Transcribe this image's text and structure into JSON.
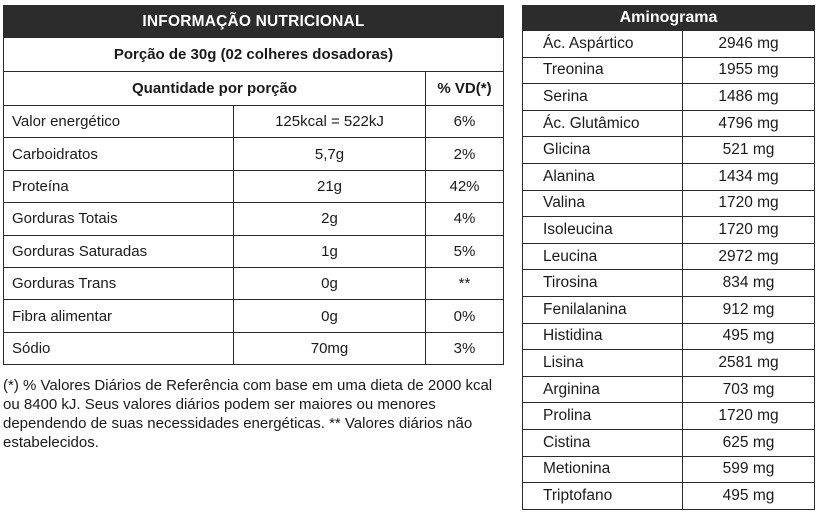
{
  "nutrition": {
    "title": "INFORMAÇÃO NUTRICIONAL",
    "portion": "Porção de 30g (02 colheres dosadoras)",
    "header_quantity": "Quantidade por porção",
    "header_vd": "% VD(*)",
    "rows": [
      {
        "name": "Valor energético",
        "value": "125kcal = 522kJ",
        "vd": "6%"
      },
      {
        "name": "Carboidratos",
        "value": "5,7g",
        "vd": "2%"
      },
      {
        "name": "Proteína",
        "value": "21g",
        "vd": "42%"
      },
      {
        "name": "Gorduras Totais",
        "value": "2g",
        "vd": "4%"
      },
      {
        "name": "Gorduras Saturadas",
        "value": "1g",
        "vd": "5%"
      },
      {
        "name": "Gorduras Trans",
        "value": "0g",
        "vd": "**"
      },
      {
        "name": "Fibra alimentar",
        "value": "0g",
        "vd": "0%"
      },
      {
        "name": "Sódio",
        "value": "70mg",
        "vd": "3%"
      }
    ],
    "footnote": "(*) % Valores Diários de Referência com base em uma dieta de 2000 kcal ou 8400 kJ. Seus valores diários podem ser maiores ou menores dependendo de suas necessidades energéticas. ** Valores diários não estabelecidos."
  },
  "aminogram": {
    "title": "Aminograma",
    "rows": [
      {
        "name": "Ác. Aspártico",
        "amount": "2946 mg"
      },
      {
        "name": "Treonina",
        "amount": "1955 mg"
      },
      {
        "name": "Serina",
        "amount": "1486 mg"
      },
      {
        "name": "Ác. Glutâmico",
        "amount": "4796 mg"
      },
      {
        "name": "Glicina",
        "amount": "521 mg"
      },
      {
        "name": "Alanina",
        "amount": "1434 mg"
      },
      {
        "name": "Valina",
        "amount": "1720 mg"
      },
      {
        "name": "Isoleucina",
        "amount": "1720 mg"
      },
      {
        "name": "Leucina",
        "amount": "2972 mg"
      },
      {
        "name": "Tirosina",
        "amount": "834 mg"
      },
      {
        "name": "Fenilalanina",
        "amount": "912 mg"
      },
      {
        "name": "Histidina",
        "amount": "495 mg"
      },
      {
        "name": "Lisina",
        "amount": "2581 mg"
      },
      {
        "name": "Arginina",
        "amount": "703 mg"
      },
      {
        "name": "Prolina",
        "amount": "1720 mg"
      },
      {
        "name": "Cistina",
        "amount": "625 mg"
      },
      {
        "name": "Metionina",
        "amount": "599 mg"
      },
      {
        "name": "Triptofano",
        "amount": "495 mg"
      }
    ]
  }
}
